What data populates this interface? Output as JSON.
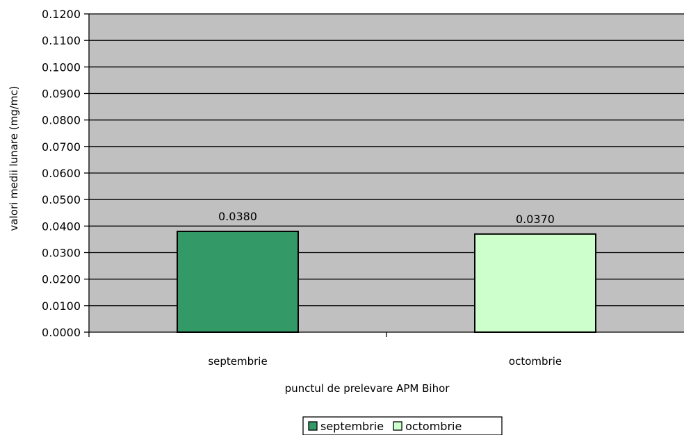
{
  "chart_data": {
    "type": "bar",
    "categories": [
      "septembrie",
      "octombrie"
    ],
    "series": [
      {
        "name": "septembrie",
        "color": "#339966",
        "values": [
          0.038,
          null
        ]
      },
      {
        "name": "octombrie",
        "color": "#CCFFCC",
        "values": [
          null,
          0.037
        ]
      }
    ],
    "data_labels": [
      "0.0380",
      "0.0370"
    ],
    "xlabel": "punctul de prelevare APM Bihor",
    "ylabel": "valori medii lunare (mg/mc)",
    "ylim": [
      0,
      0.12
    ],
    "y_ticks": [
      "0.0000",
      "0.0100",
      "0.0200",
      "0.0300",
      "0.0400",
      "0.0500",
      "0.0600",
      "0.0700",
      "0.0800",
      "0.0900",
      "0.1000",
      "0.1100",
      "0.1200"
    ],
    "grid": true,
    "legend": "bottom",
    "plot_background": "#C0C0C0",
    "gridline_color": "#000000"
  }
}
